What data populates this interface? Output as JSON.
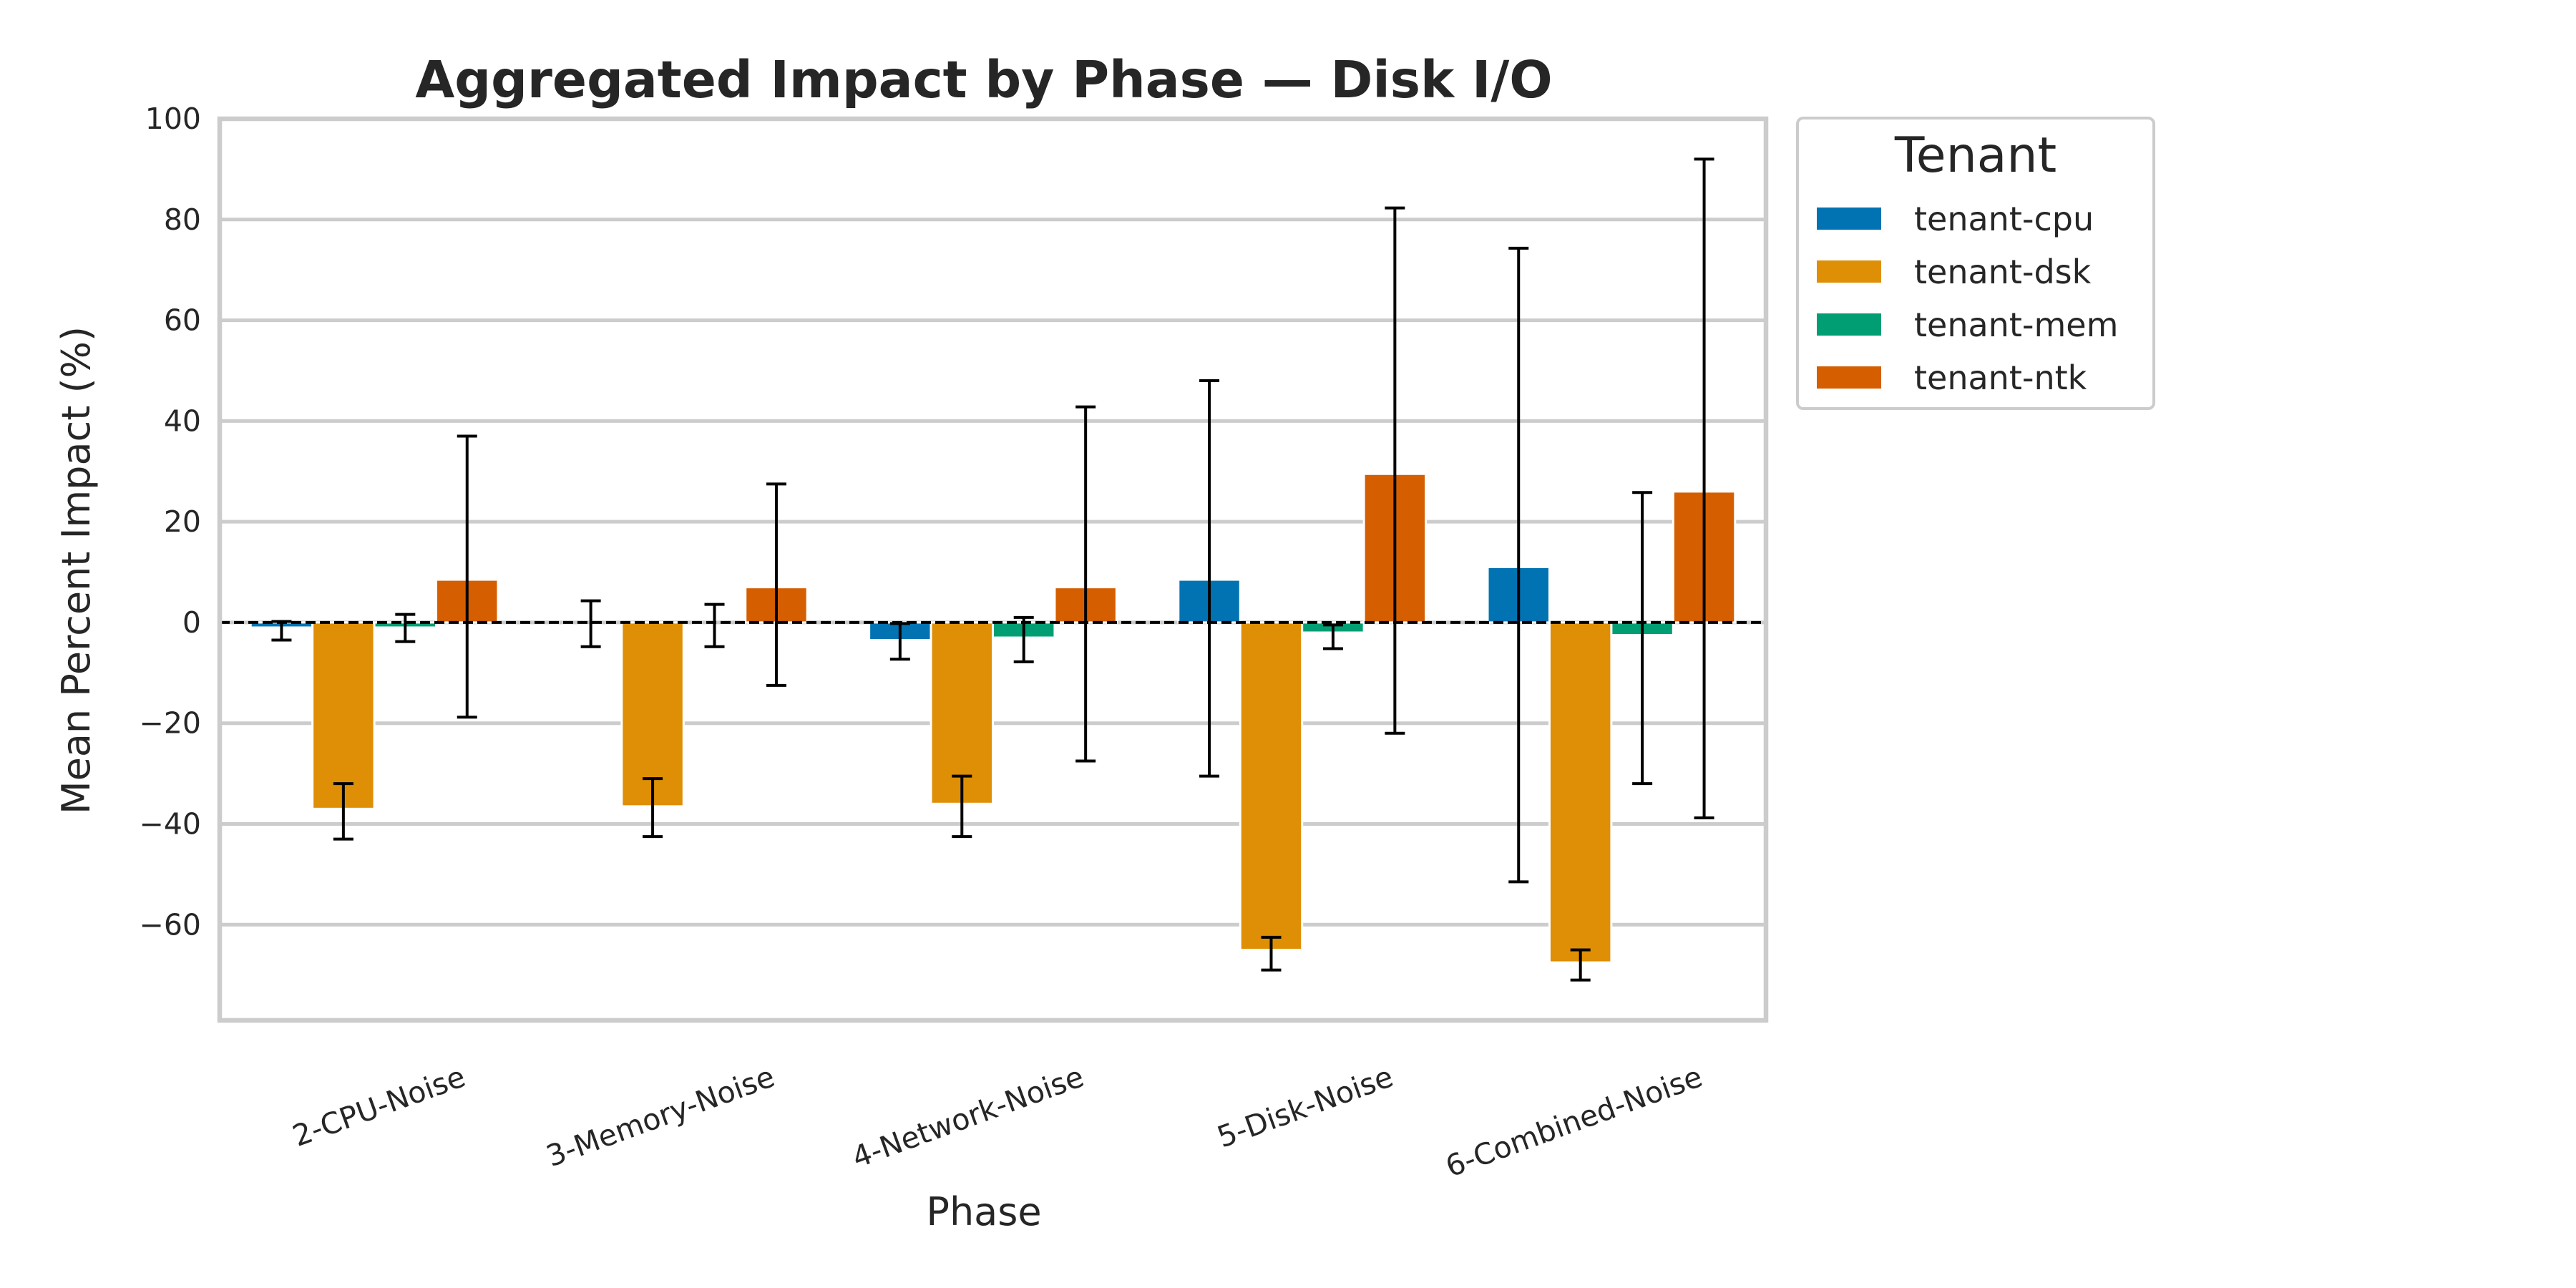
{
  "chart_data": {
    "type": "bar",
    "title": "Aggregated Impact by Phase — Disk I/O",
    "xlabel": "Phase",
    "ylabel": "Mean Percent Impact (%)",
    "ylim": [
      -79,
      100
    ],
    "yticks": [
      100,
      80,
      60,
      40,
      20,
      0,
      -20,
      -40,
      -60
    ],
    "ytick_labels": [
      "100",
      "80",
      "60",
      "40",
      "20",
      "0",
      "−20",
      "−40",
      "−60"
    ],
    "categories": [
      "2-CPU-Noise",
      "3-Memory-Noise",
      "4-Network-Noise",
      "5-Disk-Noise",
      "6-Combined-Noise"
    ],
    "grid": true,
    "reference_line": 0,
    "legend": {
      "title": "Tenant",
      "placement": "outside-top-right"
    },
    "series": [
      {
        "name": "tenant-cpu",
        "color": "#0173b2",
        "values": [
          -1.0,
          0,
          -3.5,
          8.5,
          11.0
        ],
        "err_low": [
          -3.5,
          -4.8,
          -7.3,
          -30.5,
          -51.5
        ],
        "err_high": [
          0.2,
          4.3,
          -0.2,
          48.0,
          74.3
        ]
      },
      {
        "name": "tenant-dsk",
        "color": "#de8f05",
        "values": [
          -37.0,
          -36.5,
          -36.0,
          -65.0,
          -67.5
        ],
        "err_low": [
          -43.0,
          -42.5,
          -42.5,
          -69.0,
          -71.0
        ],
        "err_high": [
          -32.0,
          -31.0,
          -30.5,
          -62.5,
          -65.0
        ]
      },
      {
        "name": "tenant-mem",
        "color": "#029e73",
        "values": [
          -1.0,
          0,
          -3.0,
          -2.0,
          -2.5
        ],
        "err_low": [
          -3.8,
          -4.8,
          -7.8,
          -5.2,
          -32.0
        ],
        "err_high": [
          1.6,
          3.6,
          1.0,
          -0.5,
          25.8
        ]
      },
      {
        "name": "tenant-ntk",
        "color": "#d55e00",
        "values": [
          8.5,
          7.0,
          7.0,
          29.5,
          26.0
        ],
        "err_low": [
          -18.8,
          -12.5,
          -27.5,
          -22.0,
          -38.8
        ],
        "err_high": [
          37.0,
          27.5,
          42.8,
          82.3,
          92.0
        ]
      }
    ]
  }
}
